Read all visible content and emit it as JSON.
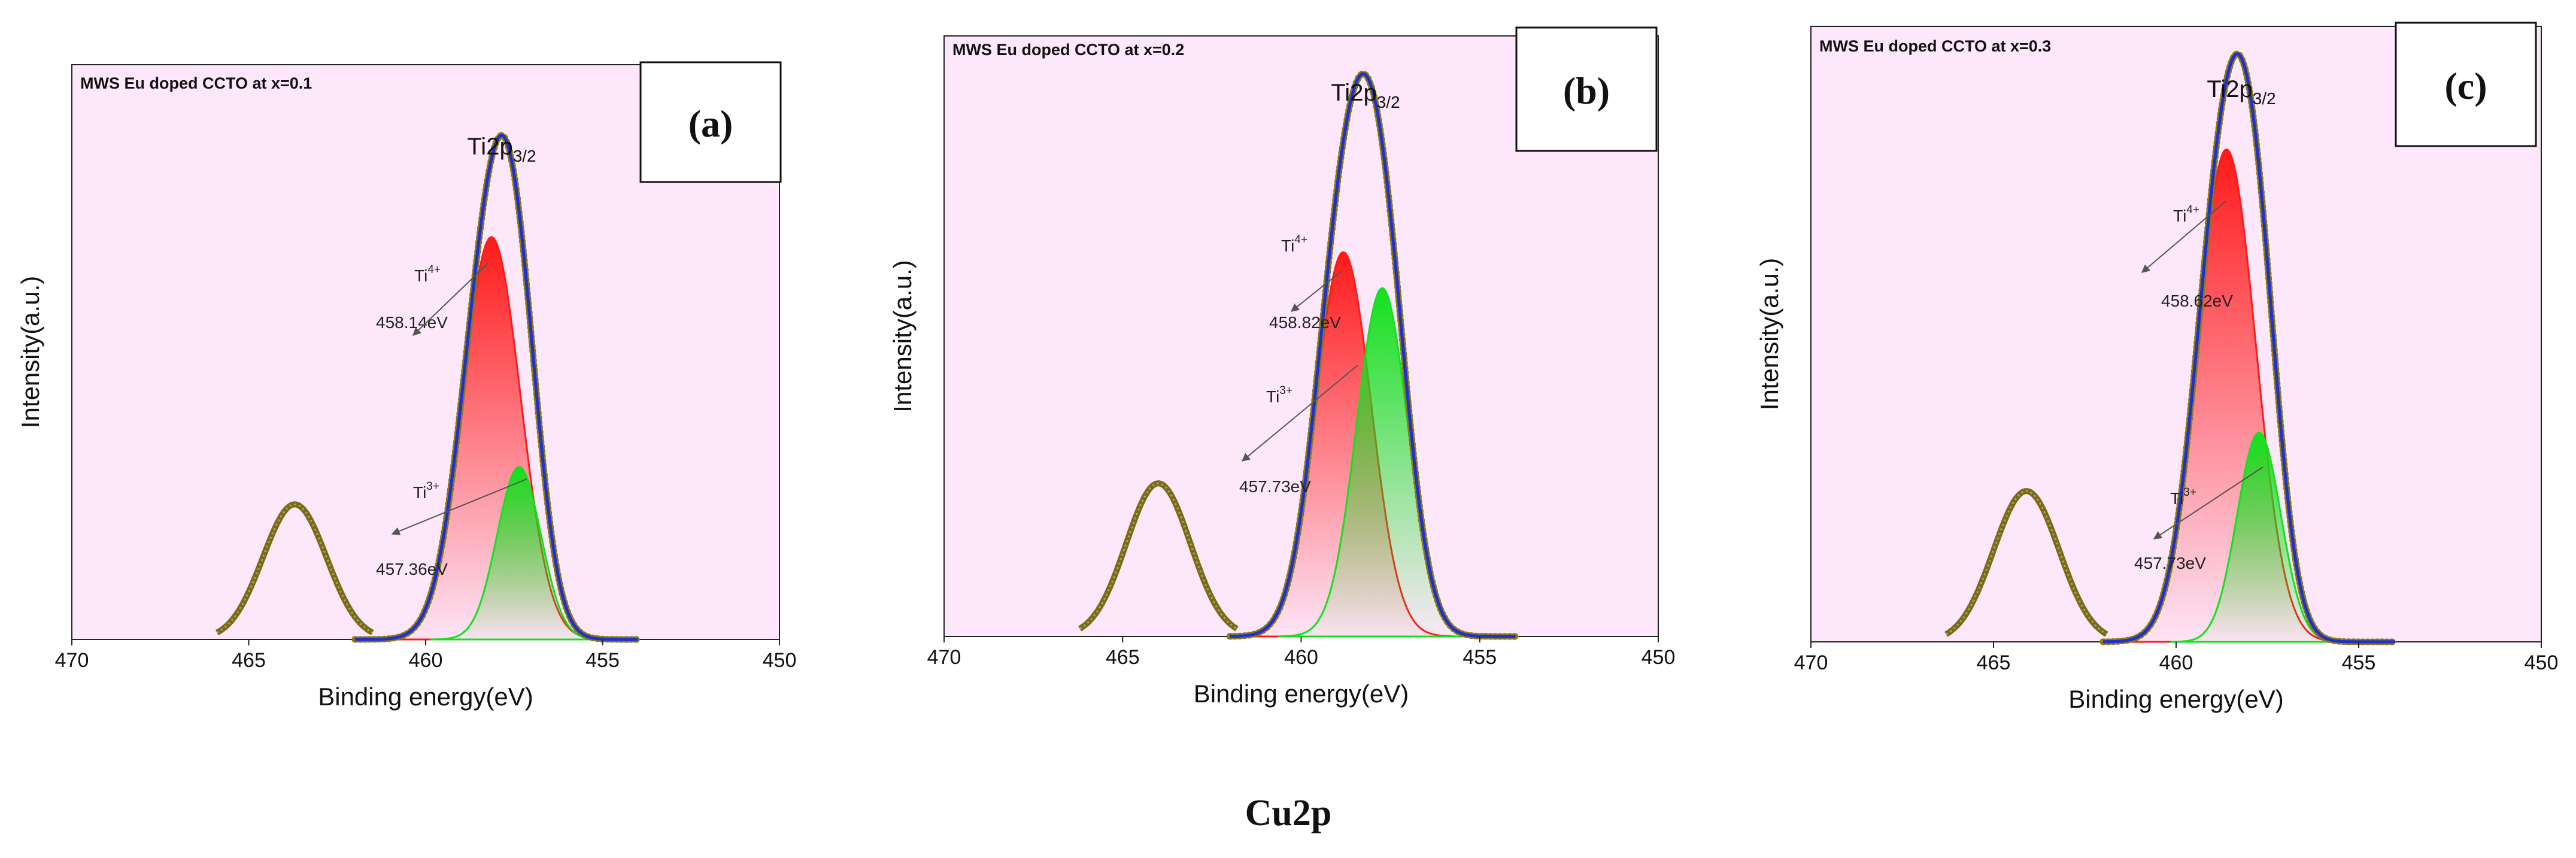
{
  "figure_caption": "Cu2p",
  "colors": {
    "plot_bg": "#fde8fb",
    "envelope": "#1f2fd6",
    "raw_data": "#8a7a10",
    "satellite": "#7a6a1c",
    "ti4_fill": "#ff1a1a",
    "ti3_fill": "#14e01e",
    "annotation_arrow": "#555555"
  },
  "chart_data": [
    {
      "type": "line",
      "panel_label": "(a)",
      "title": "MWS Eu doped CCTO at x=0.1",
      "peak_label": "Ti2p",
      "peak_label_sub": "3/2",
      "xlabel": "Binding energy(eV)",
      "ylabel": "Intensity(a.u.)",
      "xlim": [
        470,
        450
      ],
      "x_reversed": true,
      "xticks": [
        470,
        465,
        460,
        455,
        450
      ],
      "ylim": [
        0,
        1.0
      ],
      "series": [
        {
          "name": "Ti4+",
          "center": 458.14,
          "height": 0.7,
          "sigma": 0.82
        },
        {
          "name": "Ti3+",
          "center": 457.36,
          "height": 0.3,
          "sigma": 0.62
        },
        {
          "name": "satellite",
          "center": 463.7,
          "height": 0.235,
          "sigma": 0.9
        }
      ],
      "annotations": [
        {
          "species": "Ti",
          "charge": "4+",
          "value": "458.14eV"
        },
        {
          "species": "Ti",
          "charge": "3+",
          "value": "457.36eV"
        }
      ]
    },
    {
      "type": "line",
      "panel_label": "(b)",
      "title": "MWS Eu doped CCTO at x=0.2",
      "peak_label": "Ti2p",
      "peak_label_sub": "3/2",
      "xlabel": "Binding energy(eV)",
      "ylabel": "Intensity(a.u.)",
      "xlim": [
        470,
        450
      ],
      "x_reversed": true,
      "xticks": [
        470,
        465,
        460,
        455,
        450
      ],
      "ylim": [
        0,
        1.0
      ],
      "series": [
        {
          "name": "Ti4+",
          "center": 458.82,
          "height": 0.64,
          "sigma": 0.78
        },
        {
          "name": "Ti3+",
          "center": 457.73,
          "height": 0.58,
          "sigma": 0.72
        },
        {
          "name": "satellite",
          "center": 464.0,
          "height": 0.255,
          "sigma": 0.9
        }
      ],
      "annotations": [
        {
          "species": "Ti",
          "charge": "4+",
          "value": "458.82eV"
        },
        {
          "species": "Ti",
          "charge": "3+",
          "value": "457.73eV"
        }
      ]
    },
    {
      "type": "line",
      "panel_label": "(c)",
      "title": "MWS Eu doped CCTO at x=0.3",
      "peak_label": "Ti2p",
      "peak_label_sub": "3/2",
      "xlabel": "Binding energy(eV)",
      "ylabel": "Intensity(a.u.)",
      "xlim": [
        470,
        450
      ],
      "x_reversed": true,
      "xticks": [
        470,
        465,
        460,
        455,
        450
      ],
      "ylim": [
        0,
        1.0
      ],
      "series": [
        {
          "name": "Ti4+",
          "center": 458.62,
          "height": 0.8,
          "sigma": 0.8
        },
        {
          "name": "Ti3+",
          "center": 457.73,
          "height": 0.34,
          "sigma": 0.6
        },
        {
          "name": "satellite",
          "center": 464.1,
          "height": 0.245,
          "sigma": 0.9
        }
      ],
      "annotations": [
        {
          "species": "Ti",
          "charge": "4+",
          "value": "458.62eV"
        },
        {
          "species": "Ti",
          "charge": "3+",
          "value": "457.73eV"
        }
      ]
    }
  ]
}
